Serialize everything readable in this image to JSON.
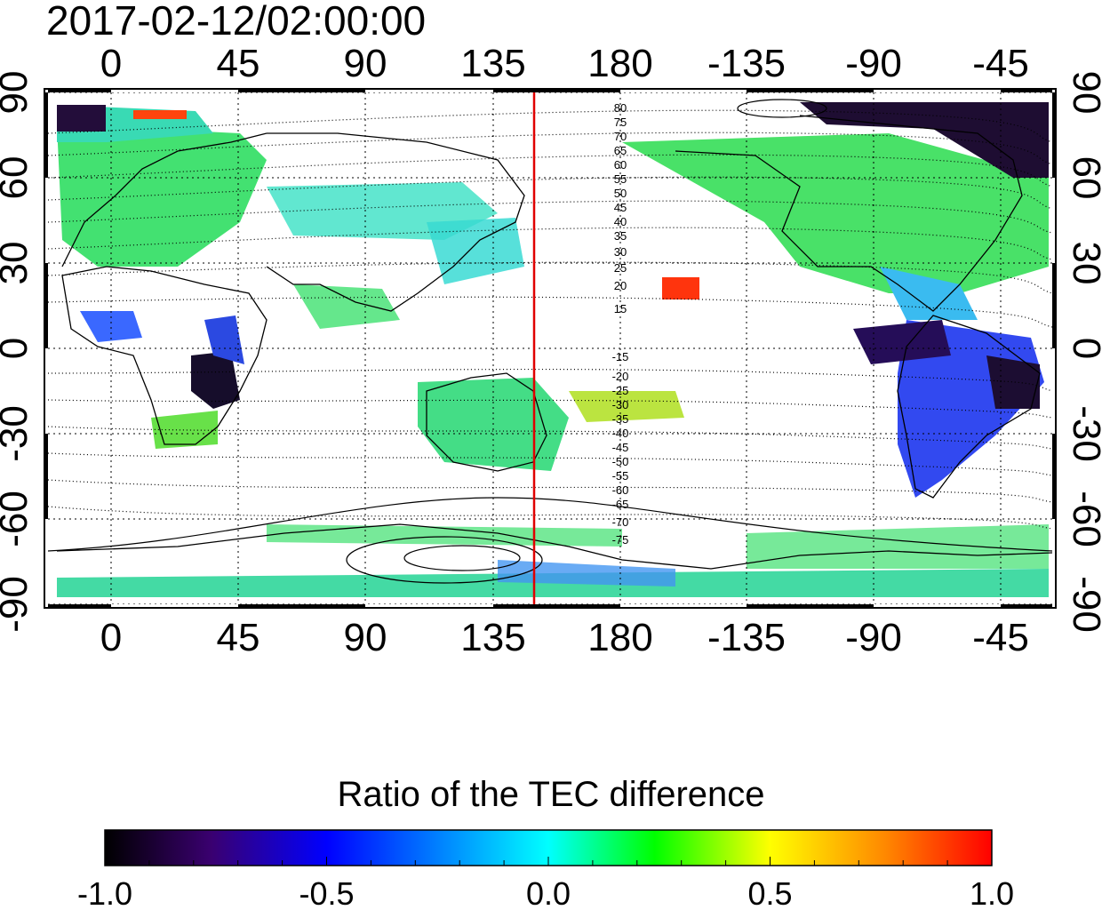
{
  "title": "2017-02-12/02:00:00",
  "map": {
    "lon_ticks": [
      "0",
      "45",
      "90",
      "135",
      "180",
      "-135",
      "-90",
      "-45"
    ],
    "lat_ticks": [
      "90",
      "60",
      "30",
      "0",
      "-30",
      "-60",
      "-90"
    ],
    "contour_labels_north": [
      "80",
      "75",
      "70",
      "65",
      "60",
      "55",
      "50",
      "45",
      "40",
      "35",
      "30",
      "25",
      "20",
      "15"
    ],
    "contour_labels_south": [
      "-15",
      "-20",
      "-25",
      "-30",
      "-35",
      "-40",
      "-45",
      "-50",
      "-55",
      "-60",
      "-65",
      "-70",
      "-75"
    ],
    "marker_line_color": "#e00000",
    "marker_line_longitude": 150
  },
  "colorbar": {
    "title": "Ratio of the TEC difference",
    "tick_labels": [
      "-1.0",
      "-0.5",
      "0.0",
      "0.5",
      "1.0"
    ],
    "stops": [
      "#000000",
      "#3a0070",
      "#0000ff",
      "#00ffff",
      "#00ff00",
      "#ffff00",
      "#ff0000"
    ]
  }
}
